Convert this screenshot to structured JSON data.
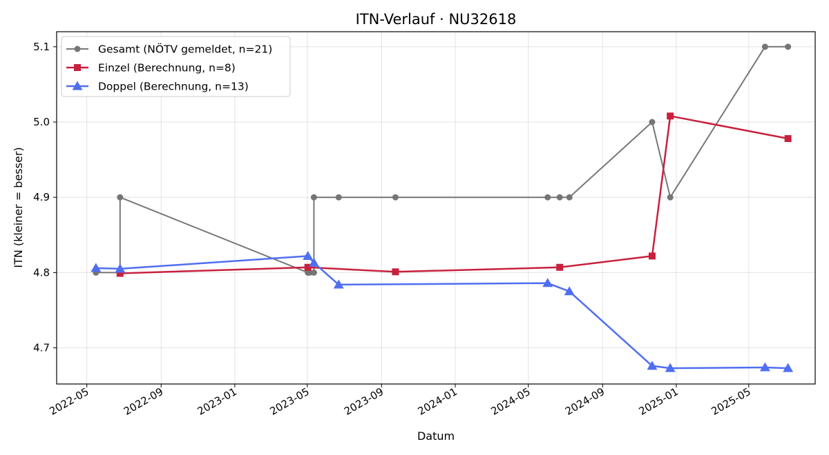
{
  "chart_data": {
    "type": "line",
    "title": "ITN-Verlauf · NU32618",
    "xlabel": "Datum",
    "ylabel": "ITN  (kleiner = besser)",
    "x_axis_type": "date",
    "xlim": [
      "2022-03-12",
      "2025-08-19"
    ],
    "ylim": [
      4.652,
      5.12
    ],
    "x_ticks": [
      "2022-05",
      "2022-09",
      "2023-01",
      "2023-05",
      "2023-09",
      "2024-01",
      "2024-05",
      "2024-09",
      "2025-01",
      "2025-05"
    ],
    "y_ticks": [
      4.7,
      4.8,
      4.9,
      5.0,
      5.1
    ],
    "grid": true,
    "legend_position": "top-left",
    "series": [
      {
        "name": "Gesamt (NÖTV gemeldet, n=21)",
        "color": "#555555",
        "marker": "circle",
        "points": [
          {
            "x": "2022-05-16",
            "y": 4.8
          },
          {
            "x": "2022-06-25",
            "y": 4.8
          },
          {
            "x": "2022-06-25",
            "y": 4.9
          },
          {
            "x": "2023-05-02",
            "y": 4.8
          },
          {
            "x": "2023-05-05",
            "y": 4.8
          },
          {
            "x": "2023-05-12",
            "y": 4.8
          },
          {
            "x": "2023-05-12",
            "y": 4.9
          },
          {
            "x": "2023-06-22",
            "y": 4.9
          },
          {
            "x": "2023-09-24",
            "y": 4.9
          },
          {
            "x": "2024-06-02",
            "y": 4.9
          },
          {
            "x": "2024-06-22",
            "y": 4.9
          },
          {
            "x": "2024-07-08",
            "y": 4.9
          },
          {
            "x": "2024-11-22",
            "y": 5.0
          },
          {
            "x": "2024-12-22",
            "y": 4.9
          },
          {
            "x": "2025-05-28",
            "y": 5.1
          },
          {
            "x": "2025-07-05",
            "y": 5.1
          }
        ]
      },
      {
        "name": "Einzel (Berechnung, n=8)",
        "color": "#c8203d",
        "marker": "square",
        "points": [
          {
            "x": "2022-06-25",
            "y": 4.799
          },
          {
            "x": "2023-05-02",
            "y": 4.807
          },
          {
            "x": "2023-09-24",
            "y": 4.801
          },
          {
            "x": "2024-06-22",
            "y": 4.807
          },
          {
            "x": "2024-11-22",
            "y": 4.822
          },
          {
            "x": "2024-12-22",
            "y": 5.008
          },
          {
            "x": "2025-07-05",
            "y": 4.978
          }
        ]
      },
      {
        "name": "Doppel (Berechnung, n=13)",
        "color": "#4f6ef0",
        "marker": "triangle",
        "points": [
          {
            "x": "2022-05-16",
            "y": 4.806
          },
          {
            "x": "2022-06-25",
            "y": 4.805
          },
          {
            "x": "2023-05-02",
            "y": 4.822
          },
          {
            "x": "2023-05-12",
            "y": 4.813
          },
          {
            "x": "2023-06-22",
            "y": 4.784
          },
          {
            "x": "2024-06-02",
            "y": 4.786
          },
          {
            "x": "2024-07-08",
            "y": 4.775
          },
          {
            "x": "2024-11-22",
            "y": 4.676
          },
          {
            "x": "2024-12-22",
            "y": 4.673
          },
          {
            "x": "2025-05-28",
            "y": 4.674
          },
          {
            "x": "2025-07-05",
            "y": 4.673
          }
        ]
      }
    ]
  }
}
